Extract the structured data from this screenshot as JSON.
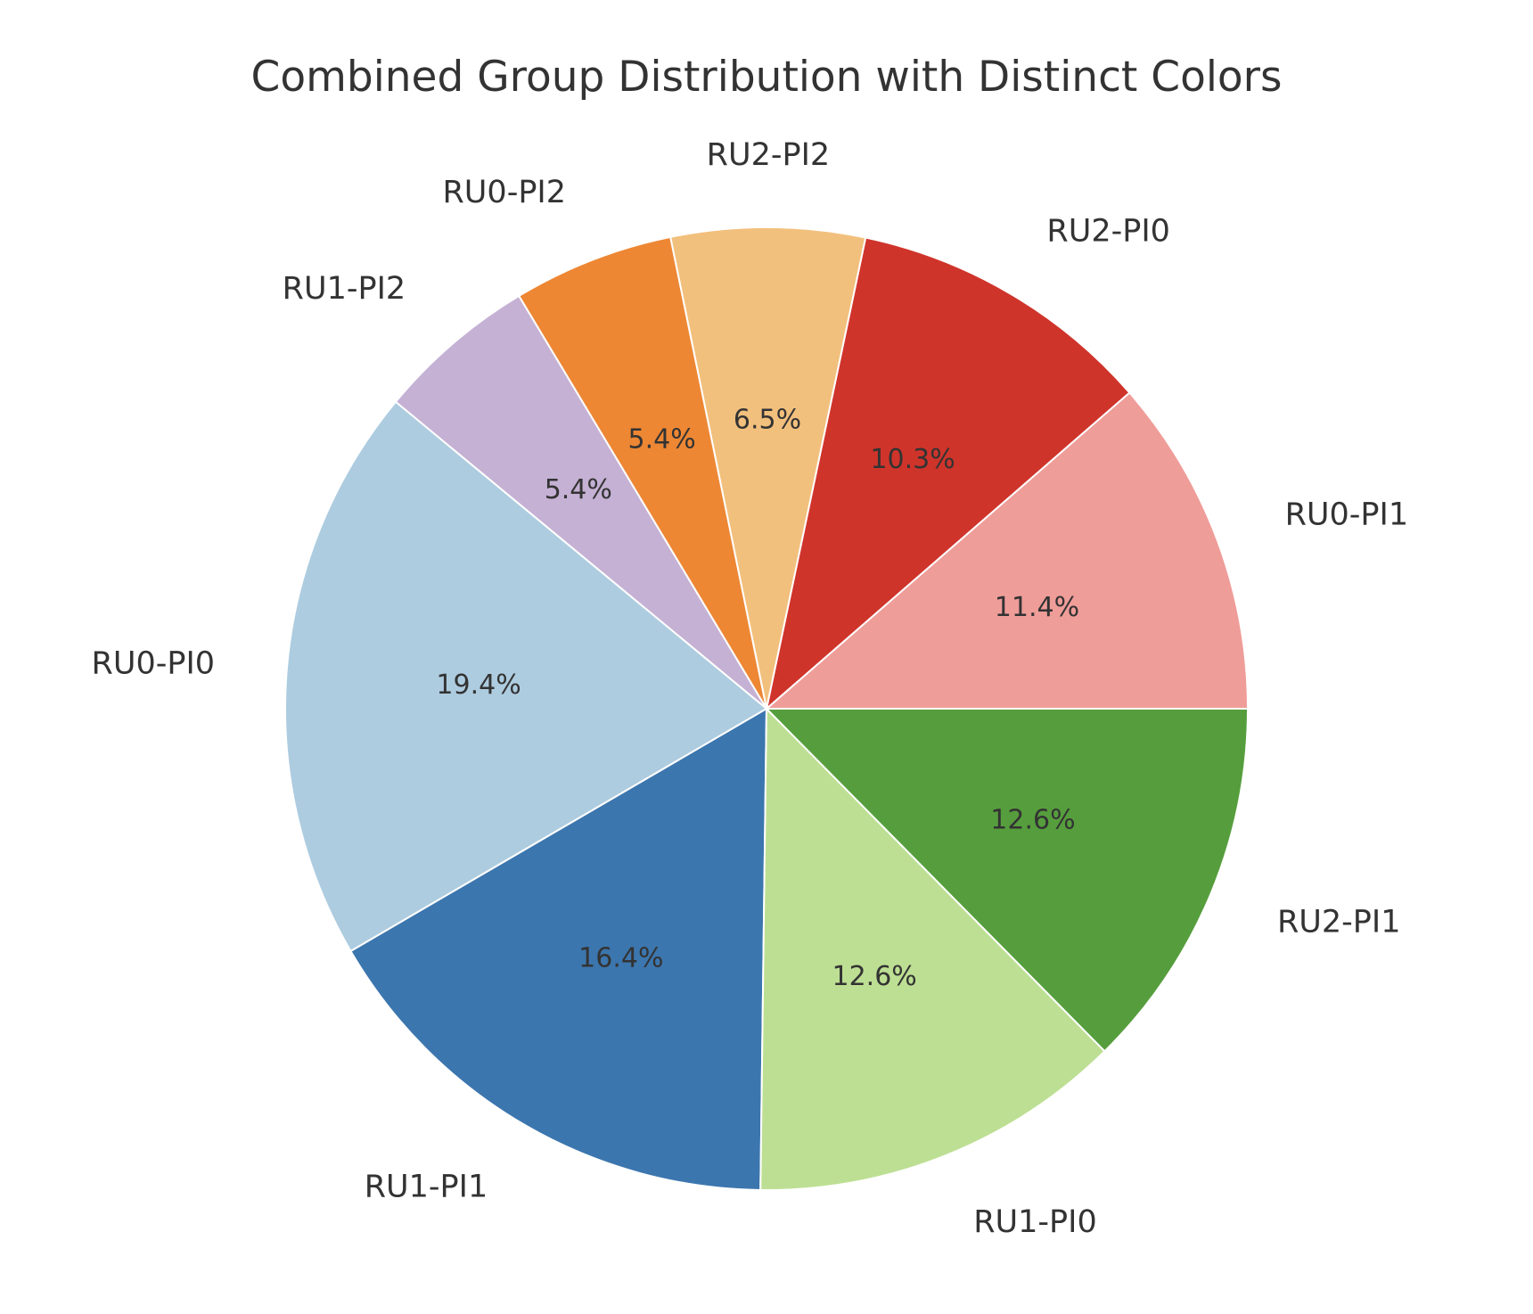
{
  "chart_data": {
    "type": "pie",
    "title": "Combined Group Distribution with Distinct Colors",
    "start_angle_deg": 0,
    "direction": "counterclockwise",
    "slices": [
      {
        "label": "RU0-PI1",
        "value": 11.4,
        "pct_text": "11.4%",
        "color": "#ef9d99"
      },
      {
        "label": "RU2-PI0",
        "value": 10.3,
        "pct_text": "10.3%",
        "color": "#cf342b"
      },
      {
        "label": "RU2-PI2",
        "value": 6.5,
        "pct_text": "6.5%",
        "color": "#f2c07d"
      },
      {
        "label": "RU0-PI2",
        "value": 5.4,
        "pct_text": "5.4%",
        "color": "#ed8734"
      },
      {
        "label": "RU1-PI2",
        "value": 5.4,
        "pct_text": "5.4%",
        "color": "#c5b1d4"
      },
      {
        "label": "RU0-PI0",
        "value": 19.4,
        "pct_text": "19.4%",
        "color": "#adcce0"
      },
      {
        "label": "RU1-PI1",
        "value": 16.4,
        "pct_text": "16.4%",
        "color": "#3c76ae"
      },
      {
        "label": "RU1-PI0",
        "value": 12.6,
        "pct_text": "12.6%",
        "color": "#bddf93"
      },
      {
        "label": "RU2-PI1",
        "value": 12.6,
        "pct_text": "12.6%",
        "color": "#569e3d"
      }
    ]
  }
}
